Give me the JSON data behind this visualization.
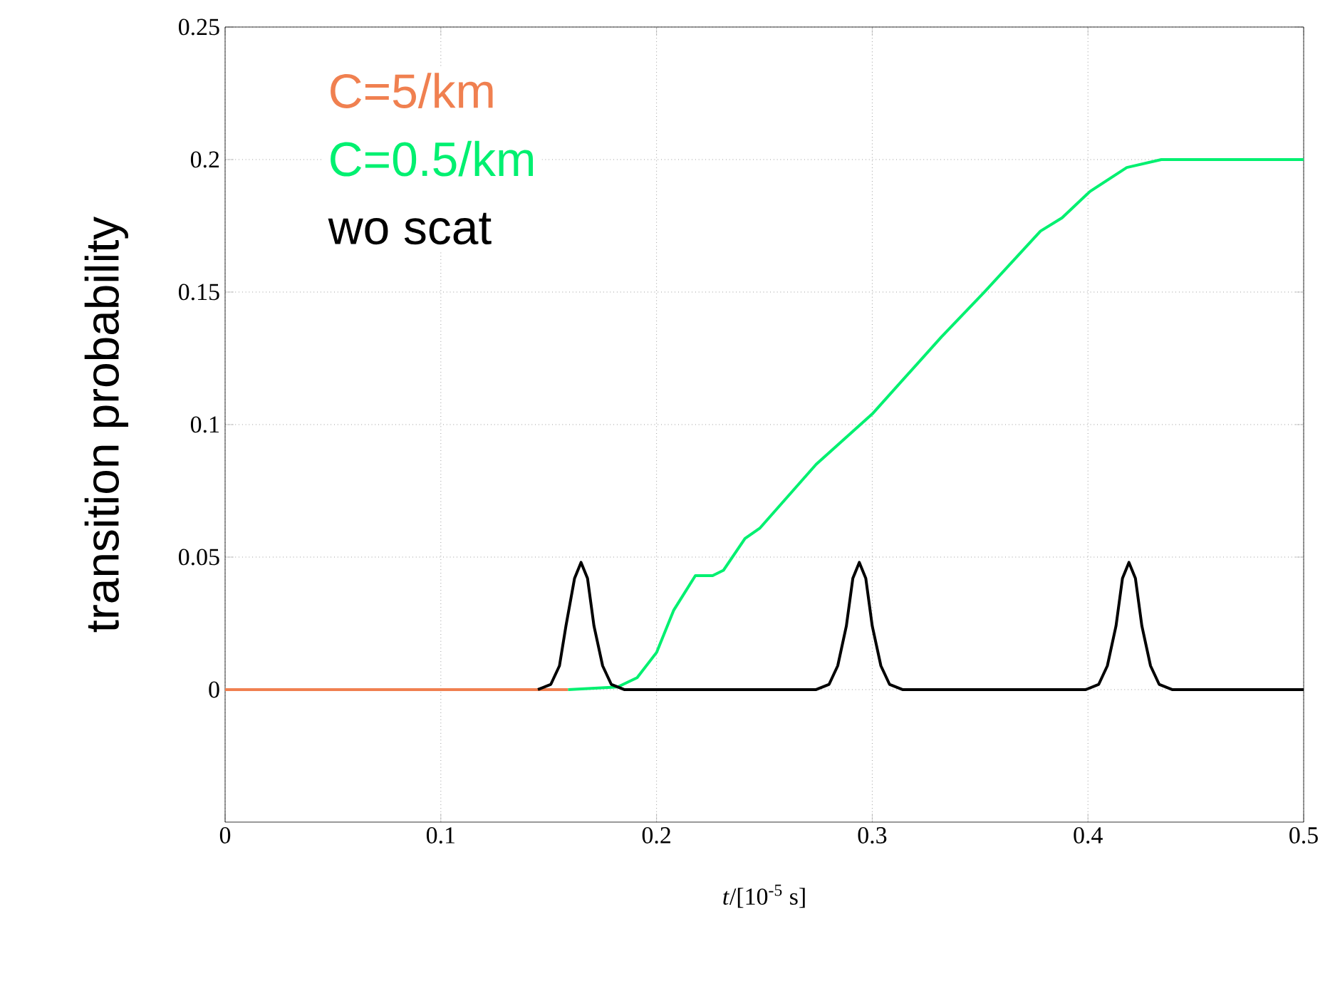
{
  "chart_data": {
    "type": "line",
    "xlabel": "*t*/[10$^{-5}$ s]",
    "ylabel": "transition probability",
    "xlim": [
      0,
      0.5
    ],
    "ylim": [
      -0.05,
      0.25
    ],
    "xticks": [
      0,
      0.1,
      0.2,
      0.3,
      0.4,
      0.5
    ],
    "yticks": [
      0,
      0.05,
      0.1,
      0.15,
      0.2,
      0.25
    ],
    "grid": true,
    "legend": "top left",
    "line_style": "solid",
    "series": [
      {
        "name": "C=5/km",
        "color": "#f08050",
        "x": [
          0,
          0.159
        ],
        "values": [
          0,
          0
        ]
      },
      {
        "name": "C=0.5/km",
        "color": "#00f070",
        "x": [
          0.159,
          0.182,
          0.191,
          0.2,
          0.208,
          0.218,
          0.226,
          0.231,
          0.241,
          0.248,
          0.274,
          0.3,
          0.332,
          0.352,
          0.378,
          0.388,
          0.401,
          0.418,
          0.434,
          0.5
        ],
        "values": [
          0,
          0.001,
          0.0045,
          0.014,
          0.03,
          0.043,
          0.043,
          0.045,
          0.057,
          0.061,
          0.085,
          0.104,
          0.133,
          0.15,
          0.173,
          0.178,
          0.188,
          0.197,
          0.2,
          0.2
        ]
      },
      {
        "name": "wo scat",
        "color": "#000000",
        "x": [
          0.145,
          0.151,
          0.155,
          0.158,
          0.162,
          0.165,
          0.168,
          0.171,
          0.175,
          0.179,
          0.185,
          0.274,
          0.28,
          0.284,
          0.288,
          0.291,
          0.294,
          0.297,
          0.3,
          0.304,
          0.308,
          0.314,
          0.399,
          0.405,
          0.409,
          0.413,
          0.416,
          0.419,
          0.422,
          0.425,
          0.429,
          0.433,
          0.439,
          0.5
        ],
        "values": [
          0,
          0.002,
          0.009,
          0.024,
          0.042,
          0.048,
          0.042,
          0.024,
          0.009,
          0.002,
          0,
          0,
          0.002,
          0.009,
          0.024,
          0.042,
          0.048,
          0.042,
          0.024,
          0.009,
          0.002,
          0,
          0,
          0.002,
          0.009,
          0.024,
          0.042,
          0.048,
          0.042,
          0.024,
          0.009,
          0.002,
          0,
          0
        ]
      }
    ]
  }
}
